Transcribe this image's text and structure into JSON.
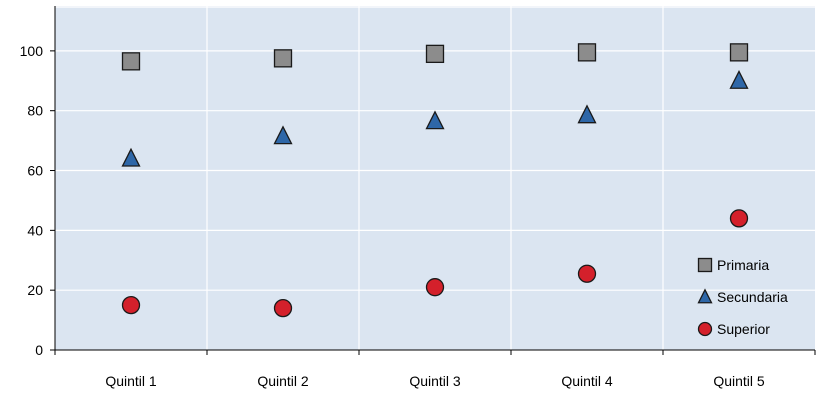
{
  "chart_data": {
    "type": "scatter",
    "categories": [
      "Quintil 1",
      "Quintil 2",
      "Quintil 3",
      "Quintil 4",
      "Quintil 5"
    ],
    "series": [
      {
        "name": "Primaria",
        "marker": "square",
        "color": "#8c8c8c",
        "values": [
          96.5,
          97.5,
          99,
          99.5,
          99.5
        ]
      },
      {
        "name": "Secundaria",
        "marker": "triangle",
        "color": "#2e67a8",
        "values": [
          64,
          71.5,
          76.5,
          78.5,
          90
        ]
      },
      {
        "name": "Superior",
        "marker": "circle",
        "color": "#d4202b",
        "values": [
          15,
          14,
          21,
          25.5,
          44
        ]
      }
    ],
    "yticks": [
      0,
      20,
      40,
      60,
      80,
      100
    ],
    "ylim": [
      0,
      115
    ],
    "grid": true,
    "plot_background": "#dbe5f1",
    "legend_position": "bottom-right",
    "title": "",
    "xlabel": "",
    "ylabel": ""
  }
}
